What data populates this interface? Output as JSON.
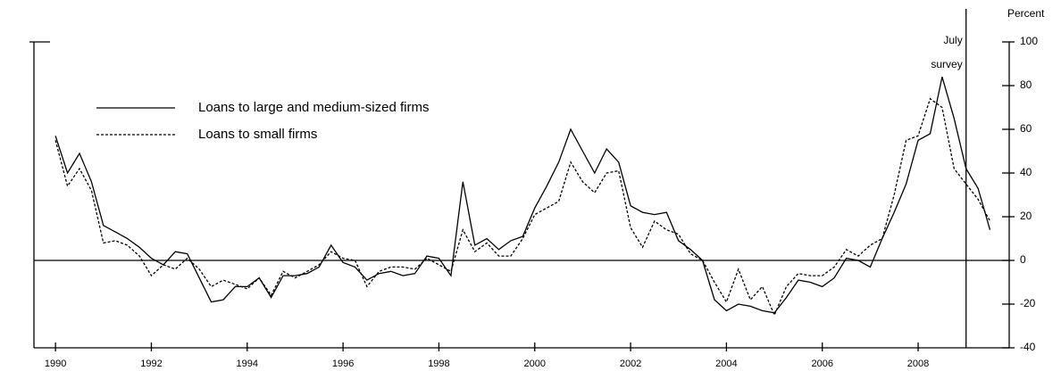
{
  "chart_data": {
    "type": "line",
    "y_axis_label": "Percent",
    "annotation": [
      "July",
      "survey"
    ],
    "survey_line": 2009,
    "legend": "upper left",
    "x": [
      1990,
      1990.25,
      1990.5,
      1990.75,
      1991,
      1991.25,
      1991.5,
      1991.75,
      1992,
      1992.25,
      1992.5,
      1992.75,
      1993,
      1993.25,
      1993.5,
      1993.75,
      1994,
      1994.25,
      1994.5,
      1994.75,
      1995,
      1995.25,
      1995.5,
      1995.75,
      1996,
      1996.25,
      1996.5,
      1996.75,
      1997,
      1997.25,
      1997.5,
      1997.75,
      1998,
      1998.25,
      1998.5,
      1998.75,
      1999,
      1999.25,
      1999.5,
      1999.75,
      2000,
      2000.25,
      2000.5,
      2000.75,
      2001,
      2001.25,
      2001.5,
      2001.75,
      2002,
      2002.25,
      2002.5,
      2002.75,
      2003,
      2003.25,
      2003.5,
      2003.75,
      2004,
      2004.25,
      2004.5,
      2004.75,
      2005,
      2005.25,
      2005.5,
      2005.75,
      2006,
      2006.25,
      2006.5,
      2006.75,
      2007,
      2007.25,
      2007.5,
      2007.75,
      2008,
      2008.25,
      2008.5,
      2008.75,
      2009,
      2009.25,
      2009.5
    ],
    "series": [
      {
        "name": "Loans to large and medium-sized firms",
        "color": "#000000",
        "dash": "solid",
        "values": [
          57,
          40,
          49,
          36,
          16,
          13,
          10,
          6,
          1,
          -2,
          4,
          3,
          -8,
          -19,
          -18,
          -12,
          -12,
          -8,
          -17,
          -7,
          -7,
          -6,
          -3,
          7,
          -1,
          -3,
          -9,
          -6,
          -5,
          -7,
          -6,
          2,
          1,
          -7,
          36,
          7,
          10,
          5,
          9,
          11,
          24,
          34,
          45,
          60,
          50,
          40,
          51,
          45,
          25,
          22,
          21,
          22,
          9,
          5,
          0,
          -18,
          -23,
          -20,
          -21,
          -23,
          -24,
          -17,
          -9,
          -10,
          -12,
          -8,
          1,
          0,
          -3,
          10,
          22,
          35,
          55,
          58,
          84,
          65,
          42,
          33,
          14
        ]
      },
      {
        "name": "Loans to small firms",
        "color": "#000000",
        "dash": "dashed",
        "values": [
          55,
          34,
          42,
          32,
          8,
          9,
          7,
          2,
          -7,
          -2,
          -4,
          1,
          -4,
          -12,
          -9,
          -11,
          -13,
          -8,
          -16,
          -5,
          -8,
          -5,
          -2,
          4,
          1,
          0,
          -12,
          -5,
          -3,
          -3,
          -4,
          1,
          -2,
          -5,
          14,
          4,
          8,
          2,
          2,
          10,
          21,
          24,
          27,
          45,
          36,
          31,
          40,
          41,
          15,
          6,
          18,
          14,
          12,
          3,
          0,
          -10,
          -19,
          -4,
          -18,
          -12,
          -25,
          -12,
          -6,
          -7,
          -7,
          -3,
          5,
          2,
          7,
          10,
          30,
          55,
          57,
          74,
          70,
          42,
          35,
          28,
          18
        ]
      }
    ],
    "xlim": [
      1989.55,
      2009.9
    ],
    "xticks": [
      1990,
      1992,
      1994,
      1996,
      1998,
      2000,
      2002,
      2004,
      2006,
      2008
    ],
    "ylim": [
      -40,
      100
    ],
    "yticks": [
      -40,
      -20,
      0,
      20,
      40,
      60,
      80,
      100
    ]
  }
}
